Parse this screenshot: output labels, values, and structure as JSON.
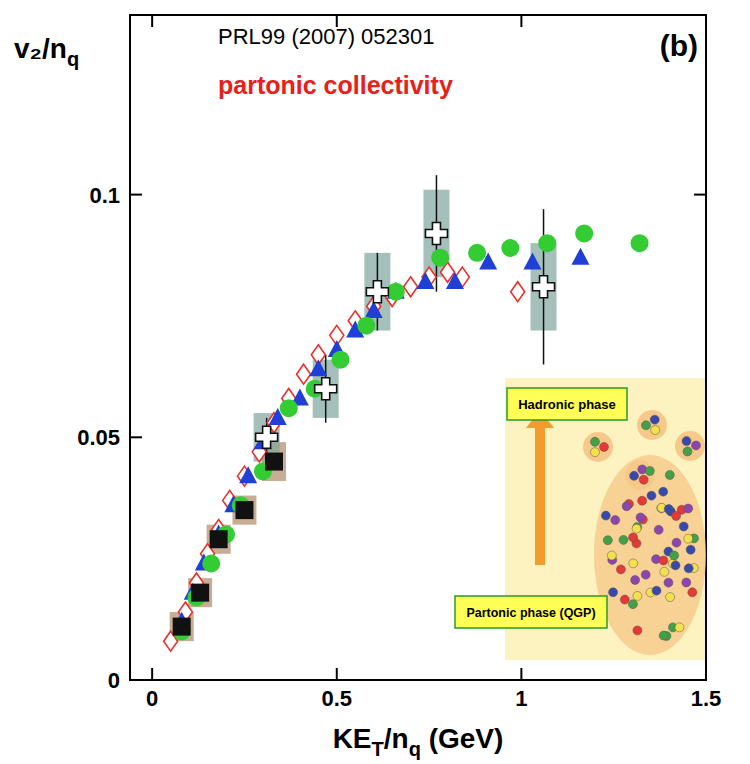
{
  "chart_data": {
    "type": "scatter",
    "xlabel": "KET/nq (GeV)",
    "ylabel": "v₂/nq",
    "xlim": [
      -0.06,
      1.5
    ],
    "ylim": [
      0,
      0.137
    ],
    "xticks": [
      0,
      0.5,
      1,
      1.5
    ],
    "yticks": [
      0,
      0.05,
      0.1
    ],
    "grid": false,
    "annotations": [
      "PRL99 (2007) 052301",
      "partonic collectivity",
      "(b)",
      "Hadronic phase",
      "Partonic phase (QGP)"
    ],
    "series": [
      {
        "color": "#e8322d",
        "marker": "diamond-open",
        "x": [
          0.05,
          0.09,
          0.12,
          0.15,
          0.18,
          0.21,
          0.25,
          0.29,
          0.33,
          0.37,
          0.41,
          0.45,
          0.5,
          0.55,
          0.6,
          0.65,
          0.7,
          0.75,
          0.8,
          0.84,
          0.99
        ],
        "values": [
          0.008,
          0.014,
          0.02,
          0.026,
          0.031,
          0.037,
          0.042,
          0.047,
          0.053,
          0.058,
          0.063,
          0.067,
          0.071,
          0.074,
          0.077,
          0.079,
          0.081,
          0.083,
          0.084,
          0.083,
          0.08
        ]
      },
      {
        "color": "#1f3fd6",
        "marker": "triangle",
        "x": [
          0.08,
          0.11,
          0.14,
          0.18,
          0.22,
          0.26,
          0.3,
          0.34,
          0.4,
          0.45,
          0.5,
          0.55,
          0.6,
          0.66,
          0.74,
          0.82,
          0.91,
          1.03,
          1.16
        ],
        "values": [
          0.012,
          0.018,
          0.024,
          0.03,
          0.036,
          0.042,
          0.049,
          0.054,
          0.058,
          0.064,
          0.068,
          0.072,
          0.076,
          0.08,
          0.082,
          0.082,
          0.086,
          0.086,
          0.087
        ]
      },
      {
        "color": "#33cc33",
        "marker": "circle",
        "x": [
          0.08,
          0.12,
          0.16,
          0.2,
          0.24,
          0.3,
          0.37,
          0.44,
          0.51,
          0.58,
          0.66,
          0.78,
          0.88,
          0.97,
          1.07,
          1.17,
          1.32
        ],
        "values": [
          0.01,
          0.017,
          0.024,
          0.03,
          0.036,
          0.043,
          0.056,
          0.06,
          0.066,
          0.073,
          0.08,
          0.087,
          0.088,
          0.089,
          0.09,
          0.092,
          0.09
        ]
      },
      {
        "color": "#111111",
        "marker": "square",
        "x": [
          0.08,
          0.13,
          0.18,
          0.25,
          0.33
        ],
        "values": [
          0.011,
          0.018,
          0.029,
          0.035,
          0.045
        ],
        "sys_errors": [
          0.003,
          0.003,
          0.003,
          0.003,
          0.004
        ]
      },
      {
        "color": "#111111",
        "marker": "cross-open",
        "x": [
          0.31,
          0.47,
          0.61,
          0.77,
          1.06
        ],
        "values": [
          0.05,
          0.06,
          0.08,
          0.092,
          0.081
        ],
        "errors": [
          0.004,
          0.007,
          0.008,
          0.012,
          0.016
        ],
        "sys_errors": [
          0.005,
          0.006,
          0.008,
          0.009,
          0.009
        ]
      }
    ]
  }
}
